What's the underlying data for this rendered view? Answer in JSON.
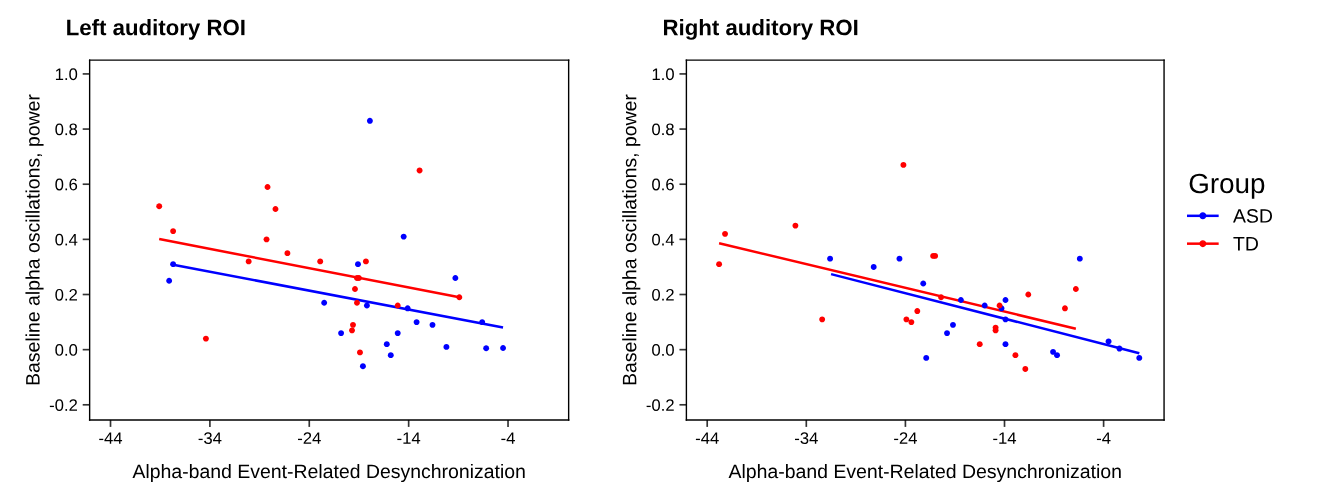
{
  "chart_data": [
    {
      "type": "scatter",
      "title": "Left auditory ROI",
      "xlabel": "Alpha-band Event-Related Desynchronization",
      "ylabel": "Baseline alpha oscillations, power",
      "xlim": [
        -46.1,
        2.1
      ],
      "ylim": [
        -0.255,
        1.05
      ],
      "xticks": [
        -44,
        -34,
        -24,
        -14,
        -4
      ],
      "yticks": [
        {
          "value": -0.2,
          "label": "-0.2"
        },
        {
          "value": 0,
          "label": "0.0"
        },
        {
          "value": 0.2,
          "label": "0.2"
        },
        {
          "value": 0.4,
          "label": "0.4"
        },
        {
          "value": 0.6,
          "label": "0.6"
        },
        {
          "value": 0.8,
          "label": "0.8"
        },
        {
          "value": 1.0,
          "label": "1.0"
        }
      ],
      "grid": false,
      "legend": "right",
      "legend_title": "Group",
      "marker": "circle",
      "series": [
        {
          "name": "ASD",
          "color": "#0000ff",
          "x": [
            -37.7,
            -38.1,
            -17.9,
            -14.5,
            -19.1,
            -22.5,
            -18.2,
            -20.8,
            -16.2,
            -15.8,
            -18.6,
            -15.1,
            -14.1,
            -13.2,
            -11.6,
            -10.2,
            -9.3,
            -6.6,
            -6.2,
            -4.5
          ],
          "values": [
            0.31,
            0.25,
            0.83,
            0.41,
            0.31,
            0.17,
            0.16,
            0.06,
            0.02,
            -0.02,
            -0.06,
            0.06,
            0.15,
            0.1,
            0.09,
            0.01,
            0.26,
            0.1,
            0.005,
            0.006
          ]
        },
        {
          "name": "TD",
          "color": "#ff0000",
          "x": [
            -39.1,
            -37.7,
            -34.4,
            -28.2,
            -27.4,
            -28.3,
            -30.1,
            -26.2,
            -22.9,
            -18.3,
            -12.9,
            -19.2,
            -19.0,
            -19.4,
            -19.2,
            -19.6,
            -19.7,
            -18.9,
            -15.1,
            -8.9
          ],
          "values": [
            0.52,
            0.43,
            0.04,
            0.59,
            0.51,
            0.4,
            0.32,
            0.35,
            0.32,
            0.32,
            0.65,
            0.26,
            0.26,
            0.22,
            0.17,
            0.09,
            0.07,
            -0.01,
            0.16,
            0.19
          ]
        },
        {
          "type": "line",
          "marker": "none",
          "color": "#0000ff",
          "x": [
            -37.7,
            -4.5
          ],
          "values": [
            0.308,
            0.08
          ]
        },
        {
          "type": "line",
          "marker": "none",
          "color": "#ff0000",
          "x": [
            -39.1,
            -8.9
          ],
          "values": [
            0.401,
            0.19
          ]
        }
      ]
    },
    {
      "type": "scatter",
      "title": "Right auditory ROI",
      "xlabel": "Alpha-band Event-Related Desynchronization",
      "ylabel": "Baseline alpha oscillations, power",
      "xlim": [
        -46.1,
        2.1
      ],
      "ylim": [
        -0.255,
        1.05
      ],
      "xticks": [
        -44,
        -34,
        -24,
        -14,
        -4
      ],
      "yticks": [
        {
          "value": -0.2,
          "label": "-0.2"
        },
        {
          "value": 0,
          "label": "0.0"
        },
        {
          "value": 0.2,
          "label": "0.2"
        },
        {
          "value": 0.4,
          "label": "0.4"
        },
        {
          "value": 0.6,
          "label": "0.6"
        },
        {
          "value": 0.8,
          "label": "0.8"
        },
        {
          "value": 1.0,
          "label": "1.0"
        }
      ],
      "grid": false,
      "marker": "circle",
      "series": [
        {
          "color": "#0000ff",
          "x": [
            -31.6,
            -27.2,
            -24.6,
            -22.2,
            -21.9,
            -19.8,
            -19.2,
            -18.4,
            -16.0,
            -14.3,
            -13.9,
            -13.9,
            -13.9,
            -9.1,
            -8.7,
            -6.4,
            -3.5,
            -2.4,
            -0.4
          ],
          "values": [
            0.33,
            0.3,
            0.33,
            0.24,
            -0.03,
            0.06,
            0.09,
            0.18,
            0.16,
            0.15,
            0.18,
            0.11,
            0.02,
            -0.008,
            -0.02,
            0.33,
            0.03,
            0.004,
            -0.03
          ]
        },
        {
          "color": "#ff0000",
          "x": [
            -42.8,
            -42.2,
            -35.1,
            -32.4,
            -24.2,
            -21.2,
            -21.0,
            -23.9,
            -23.4,
            -22.8,
            -20.4,
            -16.5,
            -14.9,
            -14.9,
            -14.5,
            -12.9,
            -11.9,
            -11.6,
            -7.9,
            -6.8
          ],
          "values": [
            0.31,
            0.42,
            0.45,
            0.11,
            0.67,
            0.34,
            0.34,
            0.11,
            0.1,
            0.14,
            0.19,
            0.02,
            0.08,
            0.07,
            0.16,
            -0.02,
            -0.07,
            0.2,
            0.15,
            0.22
          ]
        },
        {
          "type": "line",
          "marker": "none",
          "color": "#0000ff",
          "x": [
            -31.5,
            -0.4
          ],
          "values": [
            0.274,
            -0.013
          ]
        },
        {
          "type": "line",
          "marker": "none",
          "color": "#ff0000",
          "x": [
            -42.8,
            -6.8
          ],
          "values": [
            0.386,
            0.076
          ]
        }
      ]
    }
  ]
}
